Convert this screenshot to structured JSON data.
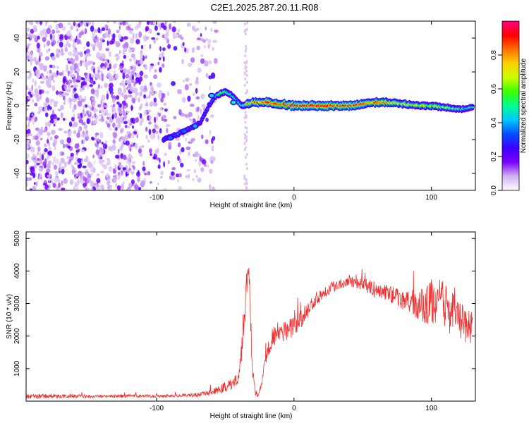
{
  "title": "C2E1.2025.287.20.11.R08",
  "chart_data": [
    {
      "type": "heatmap",
      "title": "C2E1.2025.287.20.11.R08",
      "xlabel": "Height of straight line (km)",
      "ylabel": "Frequency (Hz)",
      "xlim": [
        -195,
        132
      ],
      "ylim": [
        -50,
        50
      ],
      "xticks": [
        -100,
        0,
        100
      ],
      "yticks": [
        -40,
        -20,
        0,
        20,
        40
      ],
      "colorbar": {
        "label": "Normalized spectral amplitude",
        "range": [
          0,
          1
        ],
        "ticks": [
          0.0,
          0.2,
          0.4,
          0.6,
          0.8
        ],
        "ticklabels": [
          "0.0",
          "0.2",
          "0.4",
          "0.6",
          "0.8"
        ],
        "colors": [
          "#ffffff",
          "#d0b0f0",
          "#7b00ff",
          "#3c00ff",
          "#0050ff",
          "#00c8ff",
          "#00ff90",
          "#3cff00",
          "#c8ff00",
          "#ffd000",
          "#ff7000",
          "#ff0000",
          "#ff0080"
        ]
      },
      "noise_region": {
        "x_range": [
          -195,
          -68
        ],
        "freq_range": [
          -50,
          50
        ],
        "amplitude": 0.1
      },
      "trace": {
        "x": [
          -95,
          -85,
          -75,
          -68,
          -62,
          -58,
          -54,
          -50,
          -46,
          -44,
          -42,
          -40,
          -38,
          -36,
          -34,
          -30,
          -20,
          -10,
          0,
          10,
          20,
          30,
          40,
          50,
          60,
          70,
          80,
          90,
          100,
          110,
          120,
          125,
          130
        ],
        "freq": [
          -20,
          -17,
          -13,
          -10,
          0,
          5,
          7,
          8,
          7,
          5,
          3,
          2,
          0,
          0,
          1,
          2,
          2,
          1,
          0,
          0,
          0,
          0,
          0,
          1,
          2,
          2,
          1,
          0,
          0,
          -1,
          -2,
          -2,
          -1
        ],
        "amplitude": [
          0.3,
          0.35,
          0.35,
          0.3,
          0.35,
          0.4,
          0.55,
          0.6,
          0.55,
          0.5,
          0.5,
          0.45,
          0.5,
          0.55,
          0.75,
          0.8,
          0.9,
          0.9,
          0.95,
          0.9,
          0.95,
          0.9,
          0.9,
          0.85,
          0.8,
          0.75,
          0.7,
          0.7,
          0.65,
          0.6,
          0.55,
          0.5,
          0.5
        ]
      }
    },
    {
      "type": "line",
      "xlabel": "Height of straight line (km)",
      "ylabel": "SNR (10 * v/v)",
      "xlim": [
        -195,
        132
      ],
      "ylim": [
        0,
        5200
      ],
      "xticks": [
        -100,
        0,
        100
      ],
      "yticks": [
        1000,
        2000,
        3000,
        4000,
        5000
      ],
      "color": "#f03030",
      "series": [
        {
          "name": "SNR",
          "x": [
            -195,
            -150,
            -100,
            -80,
            -65,
            -55,
            -50,
            -45,
            -42,
            -40,
            -38,
            -36,
            -35,
            -34,
            -33,
            -32,
            -31,
            -30,
            -28,
            -26,
            -24,
            -22,
            -20,
            -18,
            -15,
            -10,
            -5,
            0,
            5,
            10,
            15,
            20,
            25,
            30,
            35,
            40,
            45,
            50,
            55,
            60,
            65,
            70,
            75,
            80,
            85,
            90,
            95,
            100,
            105,
            110,
            115,
            120,
            125,
            130
          ],
          "values": [
            150,
            150,
            160,
            170,
            220,
            330,
            450,
            520,
            700,
            900,
            1700,
            2700,
            3500,
            3900,
            4000,
            3000,
            1800,
            900,
            300,
            200,
            400,
            1000,
            1500,
            1800,
            2000,
            2100,
            2200,
            2300,
            2500,
            2800,
            3100,
            3300,
            3450,
            3550,
            3650,
            3700,
            3650,
            3600,
            3500,
            3400,
            3350,
            3300,
            3200,
            3100,
            3000,
            2900,
            2950,
            3050,
            3100,
            2900,
            2700,
            2500,
            2300,
            2300
          ],
          "spread": [
            150,
            100,
            100,
            100,
            150,
            250,
            350,
            350,
            500,
            600,
            900,
            1200,
            1200,
            800,
            800,
            900,
            700,
            500,
            250,
            200,
            300,
            500,
            650,
            700,
            750,
            700,
            650,
            600,
            550,
            500,
            450,
            400,
            400,
            350,
            350,
            350,
            350,
            400,
            450,
            500,
            500,
            550,
            550,
            600,
            700,
            900,
            1200,
            1400,
            1500,
            1500,
            1300,
            1200,
            1100,
            1000
          ]
        }
      ]
    }
  ]
}
